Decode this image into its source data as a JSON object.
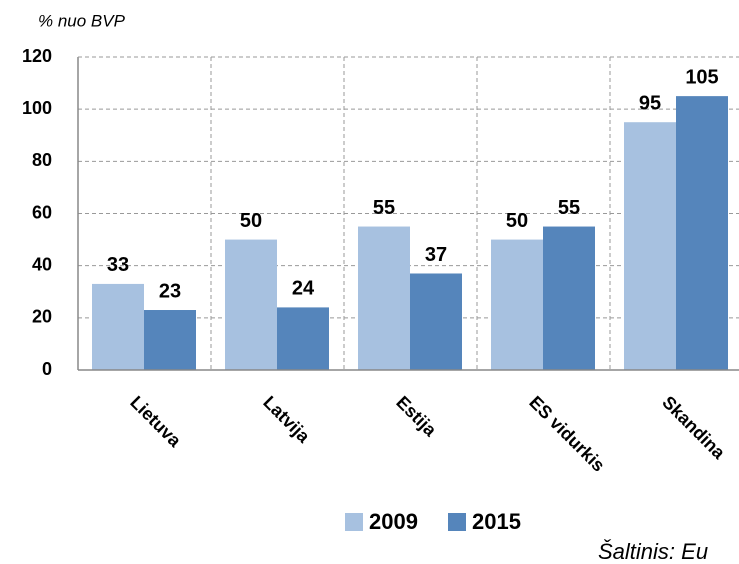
{
  "chart_data": {
    "type": "bar",
    "y_axis_label": "% nuo BVP",
    "categories": [
      "Lietuva",
      "Latvija",
      "Estija",
      "ES vidurkis",
      "Skandina"
    ],
    "series": [
      {
        "name": "2009",
        "color": "#a7c1e0",
        "values": [
          33,
          50,
          55,
          50,
          95
        ]
      },
      {
        "name": "2015",
        "color": "#5585bb",
        "values": [
          23,
          24,
          37,
          55,
          105
        ]
      }
    ],
    "ylim": [
      0,
      120
    ],
    "yticks": [
      0,
      20,
      40,
      60,
      80,
      100,
      120
    ],
    "grid": true,
    "legend": "bottom",
    "source": "Šaltinis: Eu"
  }
}
